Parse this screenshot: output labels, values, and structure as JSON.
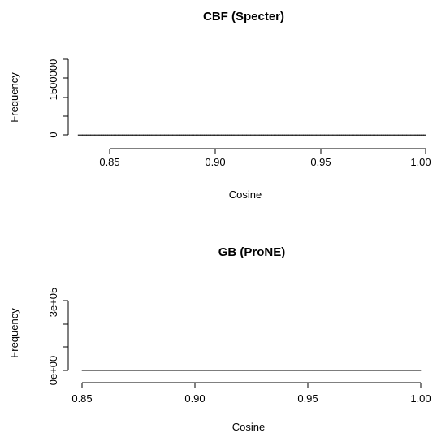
{
  "chart_data": [
    {
      "type": "bar",
      "title": "CBF (Specter)",
      "xlabel": "Cosine",
      "ylabel": "Frequency",
      "xlim": [
        0.835,
        1.0
      ],
      "ylim": [
        0,
        3500000
      ],
      "xticks": [
        0.85,
        0.9,
        0.95,
        1.0
      ],
      "xtick_labels": [
        "0.85",
        "0.90",
        "0.95",
        "1.00"
      ],
      "yticks": [
        0,
        1500000
      ],
      "ytick_labels": [
        "0",
        "1500000"
      ],
      "ytick_minor": [
        500000,
        1000000,
        2000000
      ],
      "bins": {
        "start": 0.835,
        "width": 0.001,
        "values": [
          1000,
          1000,
          1000,
          1000,
          1000,
          1000,
          1000,
          1000,
          1000,
          1000,
          1000,
          1000,
          1000,
          1000,
          1000,
          1000,
          1000,
          1000,
          1000,
          1000,
          1000,
          1000,
          1000,
          1000,
          1000,
          1000,
          1000,
          1000,
          1000,
          1000,
          1000,
          1000,
          1000,
          1000,
          1000,
          1000,
          1000,
          1000,
          1000,
          1000,
          1000,
          1000,
          1000,
          1000,
          1000,
          1000,
          1000,
          1000,
          1000,
          1000,
          1000,
          1000,
          1000,
          1000,
          1000,
          1000,
          1000,
          1000,
          1000,
          1000,
          1000,
          1000,
          1000,
          1000,
          1000,
          1000,
          1000,
          1000,
          1000,
          1000,
          1000,
          1000,
          1000,
          1000,
          1000,
          1000,
          1000,
          1000,
          1000,
          1000,
          1000,
          1000,
          1000,
          1000,
          1000,
          1000,
          1000,
          1000,
          1000,
          1000,
          1000,
          1000,
          1000,
          1000,
          1000,
          1000,
          1000,
          1000,
          1000,
          1000,
          1000,
          1000,
          1000,
          1000,
          1000,
          1000,
          1000,
          1000,
          1000,
          1000,
          1000,
          1000,
          1000,
          1000,
          1000,
          1000,
          1000,
          1000,
          1000,
          1000,
          1000,
          1000,
          1000,
          1000,
          1000,
          1000,
          1000,
          1000,
          1000,
          1000,
          1000,
          1000,
          1000,
          1000,
          1000,
          1000,
          1000,
          1000,
          1000,
          1000,
          1000,
          1000,
          1000,
          1000,
          1000,
          1000,
          1000,
          1000,
          1000,
          1000,
          1000,
          1000,
          1000,
          1000,
          1000,
          1000,
          1000,
          1000,
          1000,
          1000,
          1000,
          1000,
          1000,
          1000,
          1000
        ]
      }
    },
    {
      "type": "bar",
      "title": "GB (ProNE)",
      "xlabel": "Cosine",
      "ylabel": "Frequency",
      "xlim": [
        0.85,
        1.0
      ],
      "ylim": [
        0,
        400000
      ],
      "xticks": [
        0.85,
        0.9,
        0.95,
        1.0
      ],
      "xtick_labels": [
        "0.85",
        "0.90",
        "0.95",
        "1.00"
      ],
      "yticks": [
        0,
        300000
      ],
      "ytick_labels": [
        "0e+00",
        "3e+05"
      ],
      "ytick_minor": [
        100000,
        200000
      ],
      "bins": {
        "start": 0.85,
        "width": 0.001,
        "values": [
          1000,
          1000,
          1000,
          1000,
          1000,
          1000,
          1000,
          1000,
          1000,
          1000,
          1000,
          1000,
          1000,
          1000,
          1000,
          1000,
          1000,
          1000,
          1000,
          1000,
          1000,
          1000,
          1000,
          1000,
          1000,
          1000,
          1000,
          1000,
          1000,
          1000,
          1000,
          1000,
          1000,
          1000,
          1000,
          1000,
          1000,
          1000,
          1000,
          1000,
          1000,
          1000,
          1000,
          1000,
          1000,
          1000,
          1000,
          1000,
          1000,
          1000,
          1000,
          1000,
          1000,
          1000,
          1000,
          1000,
          1000,
          1000,
          1000,
          1000,
          1000,
          1000,
          1000,
          1000,
          1000,
          1000,
          1000,
          1000,
          1000,
          1000,
          1000,
          1000,
          1000,
          1000,
          1000,
          1000,
          1000,
          1000,
          1000,
          1000,
          1000,
          1000,
          1000,
          1000,
          1000,
          1000,
          1000,
          1000,
          1000,
          1000,
          1000,
          1000,
          1000,
          1000,
          1000,
          1000,
          1000,
          1000,
          1000,
          1000,
          1000,
          1000,
          1000,
          1000,
          1000,
          1000,
          1000,
          1000,
          1000,
          1000,
          1000,
          1000,
          1000,
          1000,
          1000,
          1000,
          1000,
          1000,
          1000,
          1000,
          1000,
          1000,
          1000,
          1000,
          1000,
          1000,
          1000,
          1000,
          1000,
          1000,
          1000,
          1000,
          1000,
          1000,
          1000,
          1000,
          1000,
          1000,
          1000,
          1000,
          1000,
          1000,
          1000,
          1000,
          1000,
          1000,
          1000,
          1000,
          1000,
          1000
        ]
      }
    }
  ]
}
